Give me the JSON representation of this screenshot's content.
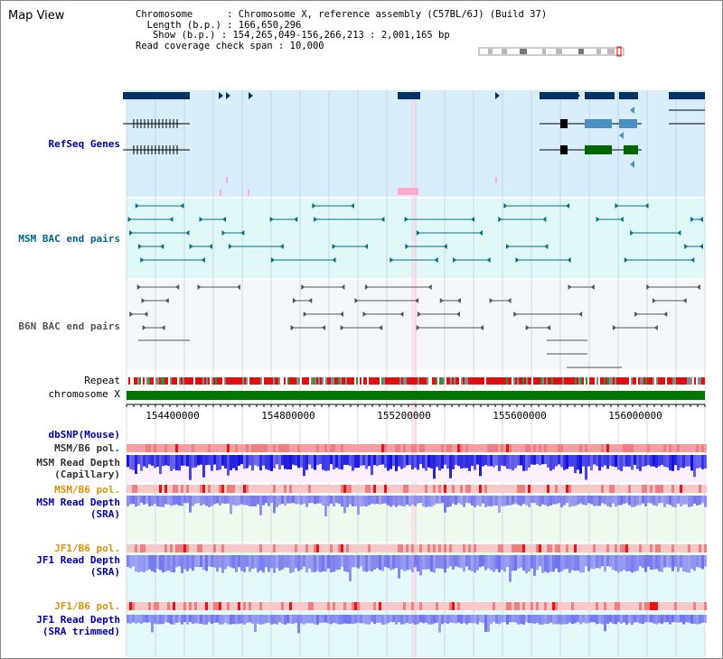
{
  "title": "Map View",
  "header": {
    "chromosome": "Chromosome      : Chromosome X, reference assembly (C57BL/6J) (Build 37)",
    "length": "Length (b.p.) : 166,650,296",
    "show": "Show (b.p.) : 154,265,049-156,266,213 : 2,001,165 bp",
    "span": "Read coverage check span : 10,000"
  },
  "tracks": {
    "refseq": "RefSeq Genes",
    "msm_bac": "MSM BAC end pairs",
    "b6n_bac": "B6N BAC end pairs",
    "repeat": "Repeat",
    "chromosome": "chromosome X",
    "dbsnp": "dbSNP(Mouse)",
    "msm_pol1": "MSM/B6 pol.",
    "msm_depth_cap_1": "MSM Read Depth",
    "msm_depth_cap_2": "(Capillary)",
    "msm_pol2": "MSM/B6 pol.",
    "msm_depth_sra_1": "MSM Read Depth",
    "msm_depth_sra_2": "(SRA)",
    "jf1_pol1": "JF1/B6 pol.",
    "jf1_depth_sra_1": "JF1 Read Depth",
    "jf1_depth_sra_2": "(SRA)",
    "jf1_pol2": "JF1/B6 pol.",
    "jf1_depth_trim_1": "JF1 Read Depth",
    "jf1_depth_trim_2": "(SRA trimmed)"
  },
  "axis": {
    "ticks": [
      "154400000",
      "154800000",
      "155200000",
      "155600000",
      "156000000"
    ],
    "tick_values": [
      154400000,
      154800000,
      155200000,
      155600000,
      156000000
    ],
    "range": [
      154265049,
      156266213
    ]
  },
  "colors": {
    "gene_dark": "#003366",
    "gene_mid": "#4a90c0",
    "gene_green": "#006600",
    "refseq_bg": "#d8eefa",
    "msm_bg": "#e0f8f8",
    "msm_line": "#00708a",
    "b6n_line": "#555555",
    "repeat_red": "#dd1111",
    "chrom_green": "#007700",
    "pol_pink": "#f4a0a0",
    "depth_dark": "#1010dd",
    "depth_light": "#7070ee",
    "highlight": "#ffaacc"
  }
}
